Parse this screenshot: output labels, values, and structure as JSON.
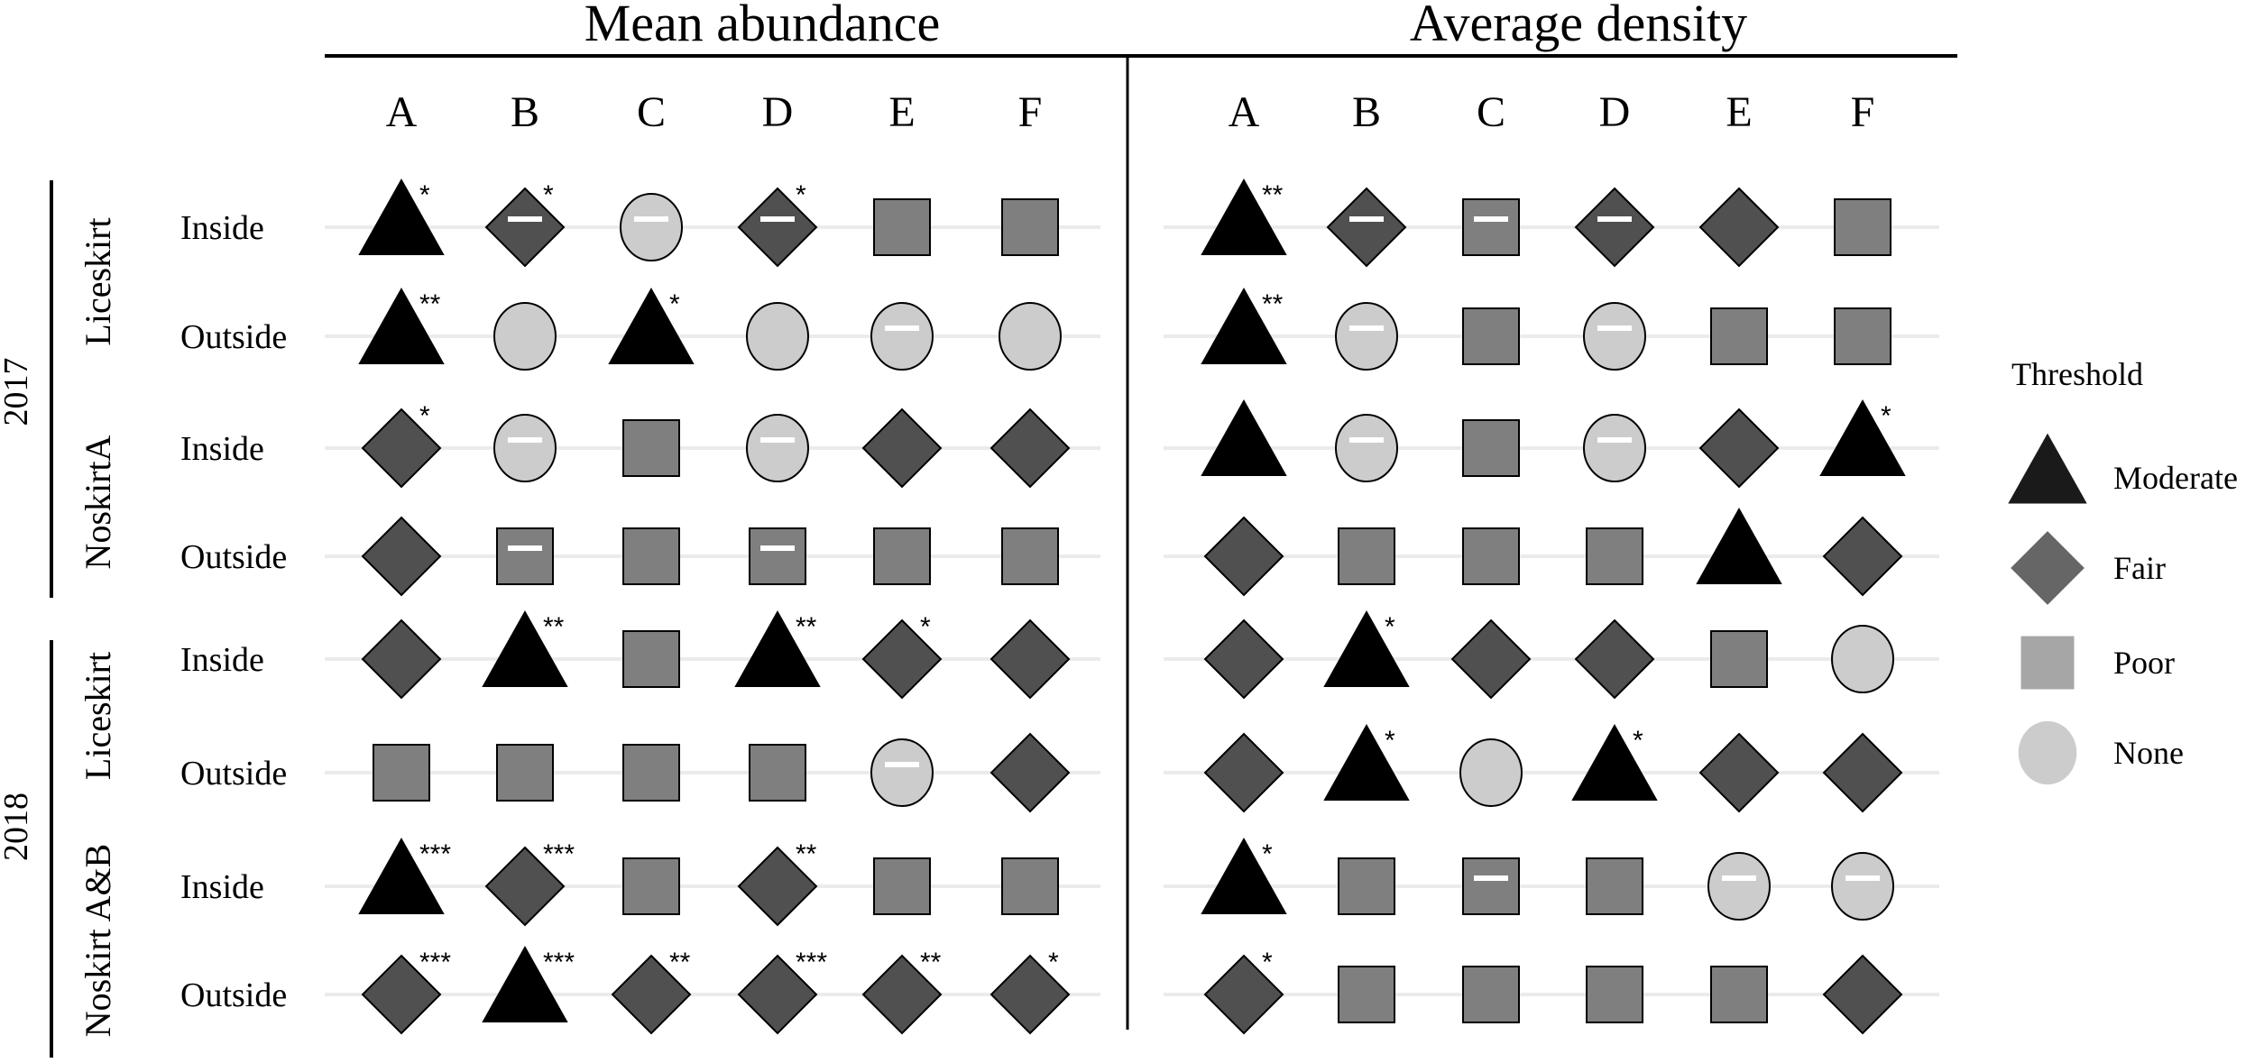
{
  "chart_data": {
    "type": "symbol-matrix",
    "panels": [
      "Mean abundance",
      "Average density"
    ],
    "columns": [
      "A",
      "B",
      "C",
      "D",
      "E",
      "F"
    ],
    "years": [
      {
        "label": "2017",
        "groups": [
          {
            "label": "Liceskirt",
            "rows": [
              "Inside",
              "Outside"
            ]
          },
          {
            "label": "NoskirtA",
            "rows": [
              "Inside",
              "Outside"
            ]
          }
        ]
      },
      {
        "label": "2018",
        "groups": [
          {
            "label": "Liceskirt",
            "rows": [
              "Inside",
              "Outside"
            ]
          },
          {
            "label": "Noskirt A&B",
            "rows": [
              "Inside",
              "Outside"
            ]
          }
        ]
      }
    ],
    "legend": {
      "title": "Threshold",
      "items": [
        {
          "key": "moderate",
          "label": "Moderate"
        },
        {
          "key": "fair",
          "label": "Fair"
        },
        {
          "key": "poor",
          "label": "Poor"
        },
        {
          "key": "none",
          "label": "None"
        }
      ]
    },
    "colors": {
      "moderate": "#000000",
      "fair": "#505050",
      "poor": "#7f7f7f",
      "none": "#cccccc",
      "legend_moderate": "#1a1a1a",
      "legend_fair": "#666666",
      "legend_poor": "#a6a6a6",
      "legend_none": "#cccccc",
      "guide": "#ebebeb"
    },
    "cells": [
      [
        [
          [
            "moderate",
            "*",
            false
          ],
          [
            "fair",
            "*",
            true
          ],
          [
            "none",
            "",
            true
          ],
          [
            "fair",
            "*",
            true
          ],
          [
            "poor",
            "",
            false
          ],
          [
            "poor",
            "",
            false
          ]
        ],
        [
          [
            "moderate",
            "**",
            false
          ],
          [
            "none",
            "",
            false
          ],
          [
            "moderate",
            "*",
            false
          ],
          [
            "none",
            "",
            false
          ],
          [
            "none",
            "",
            true
          ],
          [
            "none",
            "",
            false
          ]
        ],
        [
          [
            "fair",
            "*",
            false
          ],
          [
            "none",
            "",
            true
          ],
          [
            "poor",
            "",
            false
          ],
          [
            "none",
            "",
            true
          ],
          [
            "fair",
            "",
            false
          ],
          [
            "fair",
            "",
            false
          ]
        ],
        [
          [
            "fair",
            "",
            false
          ],
          [
            "poor",
            "",
            true
          ],
          [
            "poor",
            "",
            false
          ],
          [
            "poor",
            "",
            true
          ],
          [
            "poor",
            "",
            false
          ],
          [
            "poor",
            "",
            false
          ]
        ],
        [
          [
            "fair",
            "",
            false
          ],
          [
            "moderate",
            "**",
            false
          ],
          [
            "poor",
            "",
            false
          ],
          [
            "moderate",
            "**",
            false
          ],
          [
            "fair",
            "*",
            false
          ],
          [
            "fair",
            "",
            false
          ]
        ],
        [
          [
            "poor",
            "",
            false
          ],
          [
            "poor",
            "",
            false
          ],
          [
            "poor",
            "",
            false
          ],
          [
            "poor",
            "",
            false
          ],
          [
            "none",
            "",
            true
          ],
          [
            "fair",
            "",
            false
          ]
        ],
        [
          [
            "moderate",
            "***",
            false
          ],
          [
            "fair",
            "***",
            false
          ],
          [
            "poor",
            "",
            false
          ],
          [
            "fair",
            "**",
            false
          ],
          [
            "poor",
            "",
            false
          ],
          [
            "poor",
            "",
            false
          ]
        ],
        [
          [
            "fair",
            "***",
            false
          ],
          [
            "moderate",
            "***",
            false
          ],
          [
            "fair",
            "**",
            false
          ],
          [
            "fair",
            "***",
            false
          ],
          [
            "fair",
            "**",
            false
          ],
          [
            "fair",
            "*",
            false
          ]
        ]
      ],
      [
        [
          [
            "moderate",
            "**",
            false
          ],
          [
            "fair",
            "",
            true
          ],
          [
            "poor",
            "",
            true
          ],
          [
            "fair",
            "",
            true
          ],
          [
            "fair",
            "",
            false
          ],
          [
            "poor",
            "",
            false
          ]
        ],
        [
          [
            "moderate",
            "**",
            false
          ],
          [
            "none",
            "",
            true
          ],
          [
            "poor",
            "",
            false
          ],
          [
            "none",
            "",
            true
          ],
          [
            "poor",
            "",
            false
          ],
          [
            "poor",
            "",
            false
          ]
        ],
        [
          [
            "moderate",
            "",
            false
          ],
          [
            "none",
            "",
            true
          ],
          [
            "poor",
            "",
            false
          ],
          [
            "none",
            "",
            true
          ],
          [
            "fair",
            "",
            false
          ],
          [
            "moderate",
            "*",
            false
          ]
        ],
        [
          [
            "fair",
            "",
            false
          ],
          [
            "poor",
            "",
            false
          ],
          [
            "poor",
            "",
            false
          ],
          [
            "poor",
            "",
            false
          ],
          [
            "moderate",
            "",
            false
          ],
          [
            "fair",
            "",
            false
          ]
        ],
        [
          [
            "fair",
            "",
            false
          ],
          [
            "moderate",
            "*",
            false
          ],
          [
            "fair",
            "",
            false
          ],
          [
            "fair",
            "",
            false
          ],
          [
            "poor",
            "",
            false
          ],
          [
            "none",
            "",
            false
          ]
        ],
        [
          [
            "fair",
            "",
            false
          ],
          [
            "moderate",
            "*",
            false
          ],
          [
            "none",
            "",
            false
          ],
          [
            "moderate",
            "*",
            false
          ],
          [
            "fair",
            "",
            false
          ],
          [
            "fair",
            "",
            false
          ]
        ],
        [
          [
            "moderate",
            "*",
            false
          ],
          [
            "poor",
            "",
            false
          ],
          [
            "poor",
            "",
            true
          ],
          [
            "poor",
            "",
            false
          ],
          [
            "none",
            "",
            true
          ],
          [
            "none",
            "",
            true
          ]
        ],
        [
          [
            "fair",
            "*",
            false
          ],
          [
            "poor",
            "",
            false
          ],
          [
            "poor",
            "",
            false
          ],
          [
            "poor",
            "",
            false
          ],
          [
            "poor",
            "",
            false
          ],
          [
            "fair",
            "",
            false
          ]
        ]
      ]
    ]
  }
}
